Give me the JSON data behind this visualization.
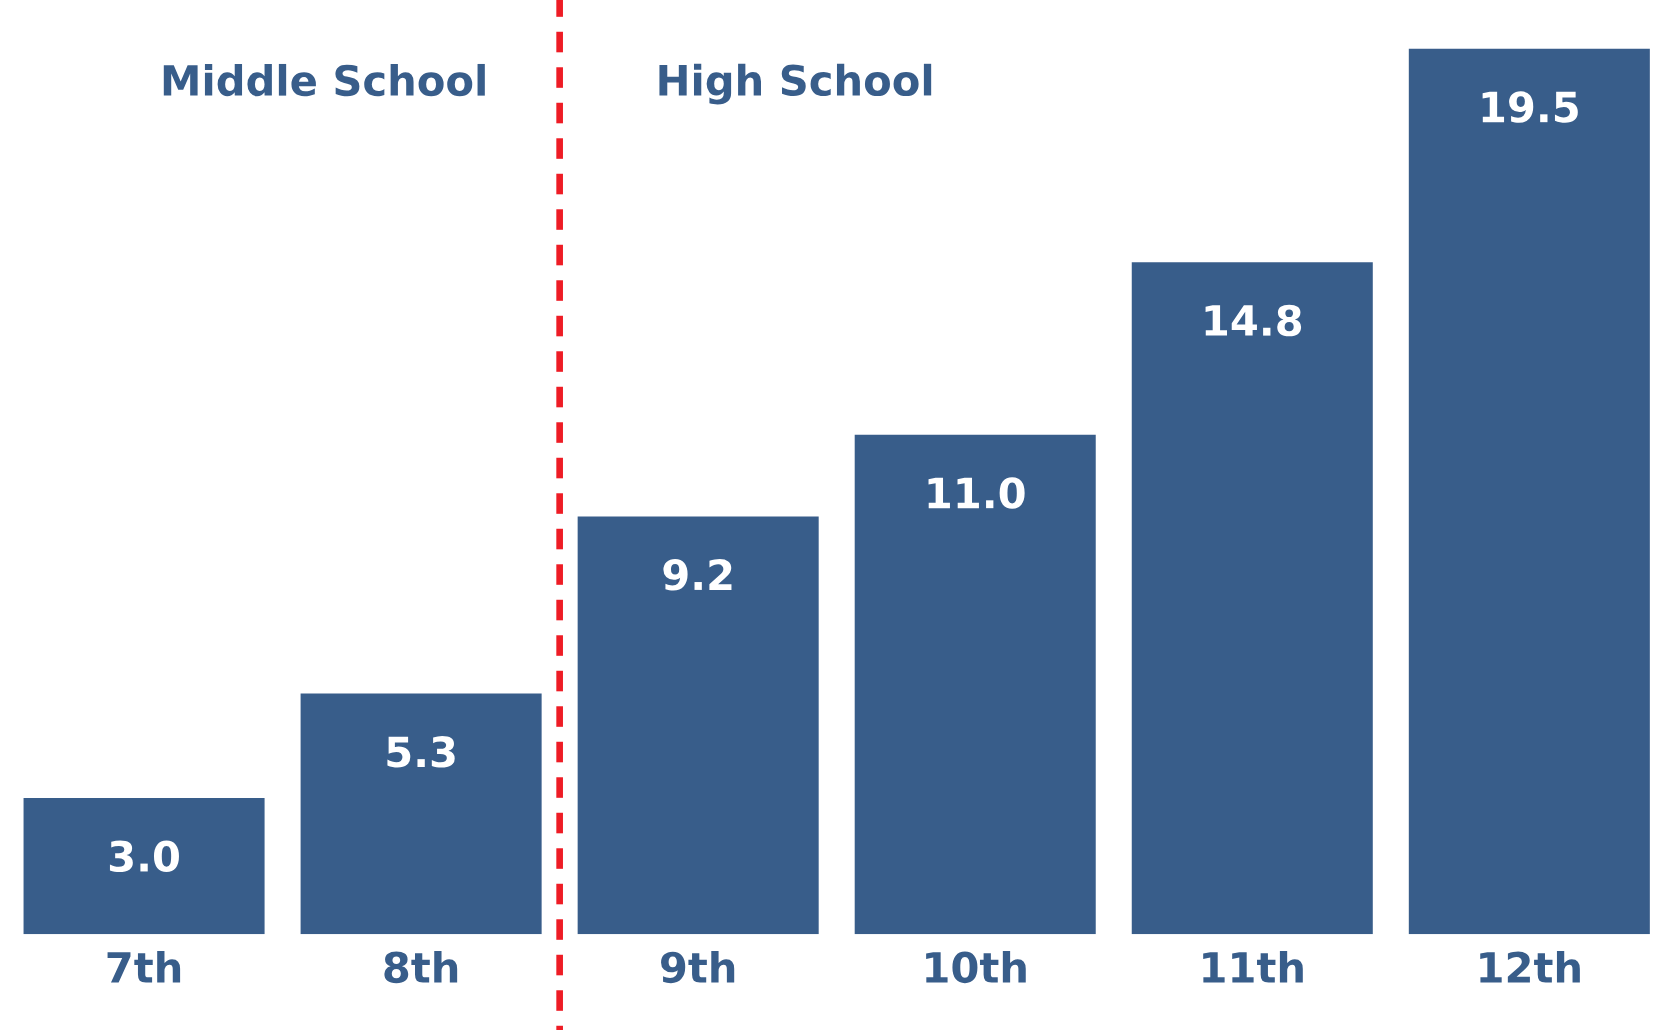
{
  "chart_data": {
    "type": "bar",
    "categories": [
      "7th",
      "8th",
      "9th",
      "10th",
      "11th",
      "12th"
    ],
    "values": [
      3.0,
      5.3,
      9.2,
      11.0,
      14.8,
      19.5
    ],
    "color": "#385d8a",
    "value_labels": [
      "3.0",
      "5.3",
      "9.2",
      "11.0",
      "14.8",
      "19.5"
    ],
    "grid": false,
    "tick_labels": "x",
    "annotations": [
      "Middle School",
      "High School"
    ]
  }
}
